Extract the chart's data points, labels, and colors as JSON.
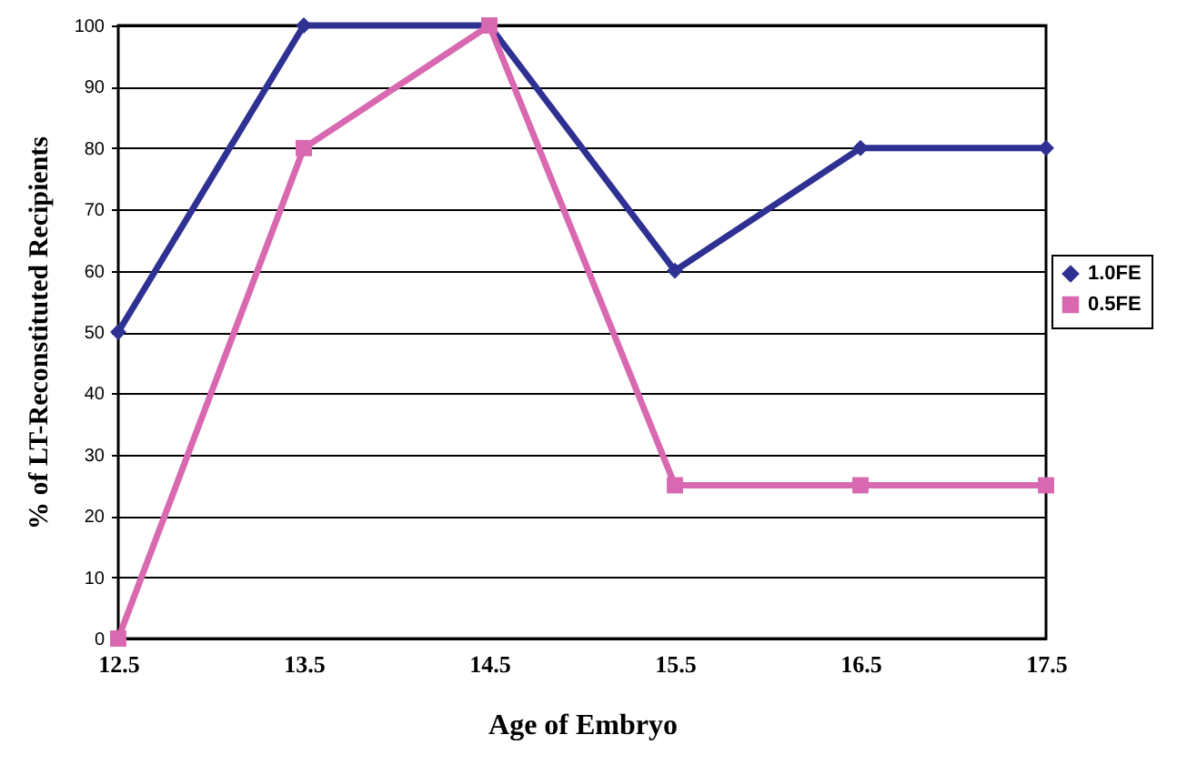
{
  "chart_data": {
    "type": "line",
    "xlabel": "Age of Embryo",
    "ylabel": "% of LT-Reconstituted Recipients",
    "categories": [
      "12.5",
      "13.5",
      "14.5",
      "15.5",
      "16.5",
      "17.5"
    ],
    "series": [
      {
        "name": "1.0FE",
        "color": "#2e3192",
        "marker": "diamond",
        "values": [
          50,
          100,
          100,
          60,
          80,
          80
        ]
      },
      {
        "name": "0.5FE",
        "color": "#d868b0",
        "marker": "square",
        "values": [
          0,
          80,
          100,
          25,
          25,
          25
        ]
      }
    ],
    "ylim": [
      0,
      100
    ],
    "yticks": [
      0,
      10,
      20,
      30,
      40,
      50,
      60,
      70,
      80,
      90,
      100
    ],
    "grid": "y",
    "legend": "right"
  }
}
